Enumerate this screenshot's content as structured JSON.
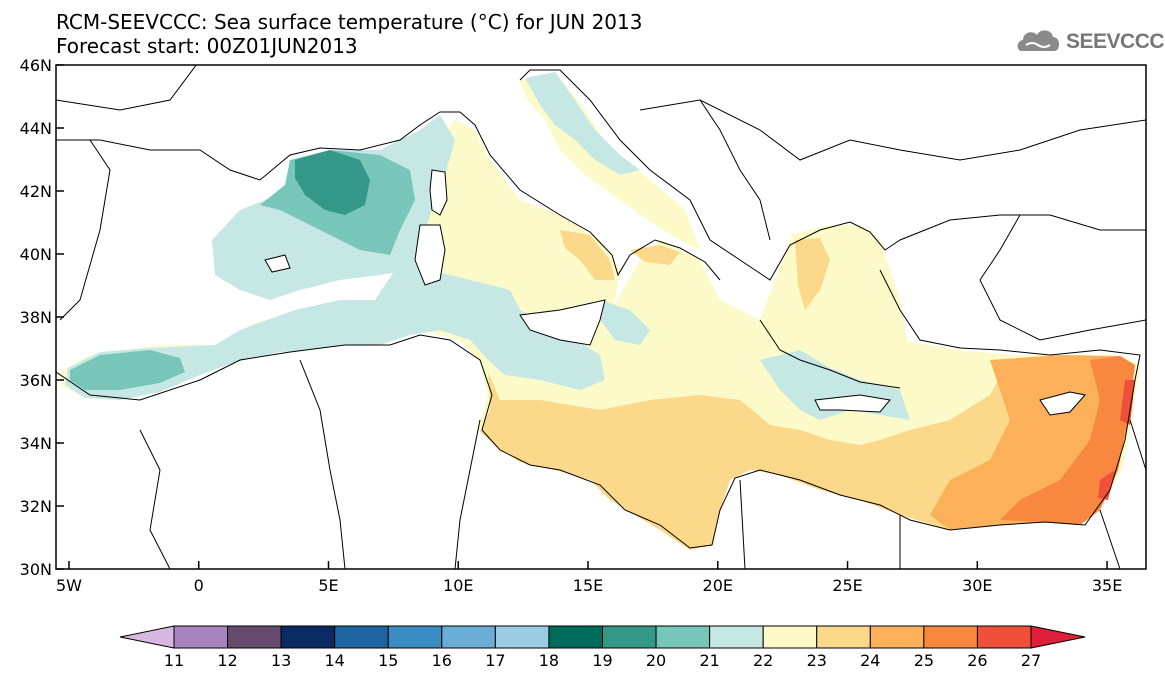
{
  "title_line1": "RCM-SEEVCCC: Sea surface temperature (°C) for JUN 2013",
  "title_line2": "Forecast start: 00Z01JUN2013",
  "logo_text": "SEEVCCC",
  "map": {
    "lon_range": [
      -5.5,
      36.5
    ],
    "lat_range": [
      30,
      46
    ],
    "x_ticks": [
      {
        "value": -5,
        "label": "5W"
      },
      {
        "value": 0,
        "label": "0"
      },
      {
        "value": 5,
        "label": "5E"
      },
      {
        "value": 10,
        "label": "10E"
      },
      {
        "value": 15,
        "label": "15E"
      },
      {
        "value": 20,
        "label": "20E"
      },
      {
        "value": 25,
        "label": "25E"
      },
      {
        "value": 30,
        "label": "30E"
      },
      {
        "value": 35,
        "label": "35E"
      }
    ],
    "y_ticks": [
      {
        "value": 46,
        "label": "46N"
      },
      {
        "value": 44,
        "label": "44N"
      },
      {
        "value": 42,
        "label": "42N"
      },
      {
        "value": 40,
        "label": "40N"
      },
      {
        "value": 38,
        "label": "38N"
      },
      {
        "value": 36,
        "label": "36N"
      },
      {
        "value": 34,
        "label": "34N"
      },
      {
        "value": 32,
        "label": "32N"
      },
      {
        "value": 30,
        "label": "30N"
      }
    ]
  },
  "colorbar": {
    "levels": [
      "11",
      "12",
      "13",
      "14",
      "15",
      "16",
      "17",
      "18",
      "19",
      "20",
      "21",
      "22",
      "23",
      "24",
      "25",
      "26",
      "27"
    ],
    "colors": [
      "#d8b8e0",
      "#a784c0",
      "#654a6e",
      "#0a2a64",
      "#1d64a0",
      "#3c8cc4",
      "#6aaed8",
      "#9ccbe4",
      "#006b5a",
      "#339888",
      "#78c6ba",
      "#c6e8e4",
      "#fcfac8",
      "#fcd88a",
      "#fcb05a",
      "#f88840",
      "#f0503a",
      "#e0203a"
    ]
  }
}
